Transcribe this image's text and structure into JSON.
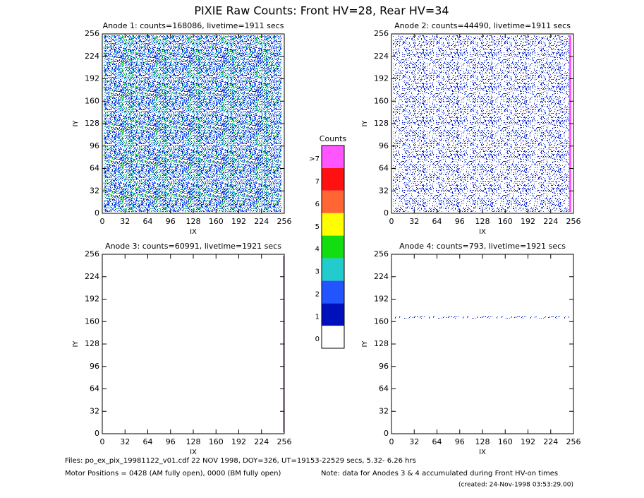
{
  "title": "PIXIE Raw Counts:  Front HV=28, Rear HV=34",
  "chart_data": [
    {
      "type": "heatmap",
      "title": "Anode 1: counts=168086, livetime=1911 secs",
      "x_label": "IX",
      "y_label": "IY",
      "xlim": [
        0,
        256
      ],
      "ylim": [
        0,
        256
      ],
      "xticks": [
        0,
        32,
        64,
        96,
        128,
        160,
        192,
        224,
        256
      ],
      "yticks": [
        0,
        32,
        64,
        96,
        128,
        160,
        192,
        224,
        256
      ]
    },
    {
      "type": "heatmap",
      "title": "Anode 2: counts=44490, livetime=1911 secs",
      "x_label": "IX",
      "y_label": "IY",
      "xlim": [
        0,
        256
      ],
      "ylim": [
        0,
        256
      ],
      "xticks": [
        0,
        32,
        64,
        96,
        128,
        160,
        192,
        224,
        256
      ],
      "yticks": [
        0,
        32,
        64,
        96,
        128,
        160,
        192,
        224,
        256
      ]
    },
    {
      "type": "heatmap",
      "title": "Anode 3: counts=60991, livetime=1921 secs",
      "x_label": "IX",
      "y_label": "IY",
      "xlim": [
        0,
        256
      ],
      "ylim": [
        0,
        256
      ],
      "xticks": [
        0,
        32,
        64,
        96,
        128,
        160,
        192,
        224,
        256
      ],
      "yticks": [
        0,
        32,
        64,
        96,
        128,
        160,
        192,
        224,
        256
      ]
    },
    {
      "type": "heatmap",
      "title": "Anode 4: counts=793, livetime=1921 secs",
      "x_label": "IX",
      "y_label": "IY",
      "xlim": [
        0,
        256
      ],
      "ylim": [
        0,
        256
      ],
      "xticks": [
        0,
        32,
        64,
        96,
        128,
        160,
        192,
        224,
        256
      ],
      "yticks": [
        0,
        32,
        64,
        96,
        128,
        160,
        192,
        224,
        256
      ]
    }
  ],
  "colorbar": {
    "title": "Counts",
    "labels": [
      0,
      1,
      2,
      3,
      4,
      5,
      6,
      7,
      ">7"
    ],
    "colors": [
      "#ffffff",
      "#0011bb",
      "#2255ff",
      "#22cccc",
      "#11dd11",
      "#ffff00",
      "#ff6633",
      "#ff1111",
      "#ff55ff"
    ]
  },
  "footer": {
    "files": "Files: po_ex_pix_19981122_v01.cdf   22 NOV 1998, DOY=326, UT=19153-22529 secs,  5.32- 6.26 hrs",
    "motor": "Motor Positions = 0428 (AM fully open), 0000 (BM fully open)",
    "note": "Note: data for Anodes 3 & 4 accumulated during Front HV-on times",
    "created": "(created: 24-Nov-1998 03:53:29.00)"
  }
}
